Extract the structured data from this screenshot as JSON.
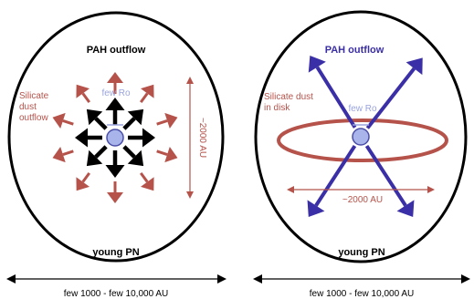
{
  "colors": {
    "outline": "#000000",
    "dust": "#b5534b",
    "pah_blue": "#3a2fa6",
    "star_fill": "#a9b4ea",
    "star_stroke": "#4b4fa8",
    "star_label": "#9aa4dd",
    "text": "#000000"
  },
  "panels": [
    {
      "title": "PAH outflow",
      "star_label": "few Ro",
      "dust_label": [
        "Silicate",
        "dust",
        "outflow"
      ],
      "scale_label": "~2000 AU",
      "name_label": "young PN",
      "bottom_label": "few 1000 - few 10,000 AU"
    },
    {
      "title": "PAH outflow",
      "star_label": "few Ro",
      "dust_label": [
        "Silicate dust",
        "in disk"
      ],
      "scale_label": "~2000 AU",
      "name_label": "young PN",
      "bottom_label": "few 1000 - few 10,000 AU"
    }
  ]
}
